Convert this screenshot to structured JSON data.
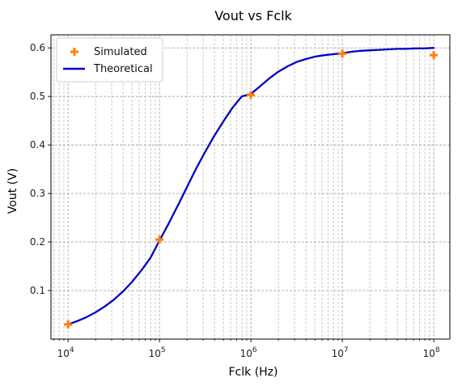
{
  "chart_data": {
    "type": "line",
    "title": "Vout vs Fclk",
    "xlabel": "Fclk (Hz)",
    "ylabel": "Vout (V)",
    "x_scale": "log",
    "xlim": [
      6500,
      150000000
    ],
    "ylim": [
      0.0,
      0.627
    ],
    "x_ticks": [
      10000,
      100000,
      1000000,
      10000000,
      100000000
    ],
    "x_tick_labels": [
      {
        "base": "10",
        "exp": "4"
      },
      {
        "base": "10",
        "exp": "5"
      },
      {
        "base": "10",
        "exp": "6"
      },
      {
        "base": "10",
        "exp": "7"
      },
      {
        "base": "10",
        "exp": "8"
      }
    ],
    "y_ticks": [
      0.1,
      0.2,
      0.3,
      0.4,
      0.5,
      0.6
    ],
    "y_tick_labels": [
      "0.1",
      "0.2",
      "0.3",
      "0.4",
      "0.5",
      "0.6"
    ],
    "grid": true,
    "grid_minor": true,
    "legend_position": "top-left",
    "series": [
      {
        "name": "Simulated",
        "kind": "scatter",
        "marker": "plus",
        "color": "#ff7f0e",
        "x": [
          10000,
          100000,
          1000000,
          10000000,
          100000000
        ],
        "y": [
          0.03,
          0.205,
          0.503,
          0.588,
          0.585
        ]
      },
      {
        "name": "Theoretical",
        "kind": "line",
        "color": "#0000c8",
        "x": [
          10000,
          12589,
          15849,
          19953,
          25119,
          31623,
          39811,
          50119,
          63096,
          79433,
          100000,
          125893,
          158489,
          199526,
          251189,
          316228,
          398107,
          501187,
          630957,
          794328,
          1000000,
          1258925,
          1584893,
          1995262,
          2511886,
          3162278,
          3981072,
          5011872,
          6309573,
          7943282,
          10000000,
          12589254,
          15848932,
          19952623,
          25118864,
          31622777,
          39810717,
          50118723,
          63095734,
          79432823,
          100000000
        ],
        "y": [
          0.03,
          0.037,
          0.045,
          0.055,
          0.067,
          0.081,
          0.098,
          0.118,
          0.141,
          0.167,
          0.203,
          0.238,
          0.275,
          0.313,
          0.351,
          0.386,
          0.419,
          0.449,
          0.477,
          0.5,
          0.505,
          0.521,
          0.537,
          0.551,
          0.562,
          0.571,
          0.577,
          0.582,
          0.585,
          0.587,
          0.589,
          0.592,
          0.594,
          0.595,
          0.596,
          0.597,
          0.598,
          0.598,
          0.599,
          0.599,
          0.6
        ]
      }
    ]
  }
}
